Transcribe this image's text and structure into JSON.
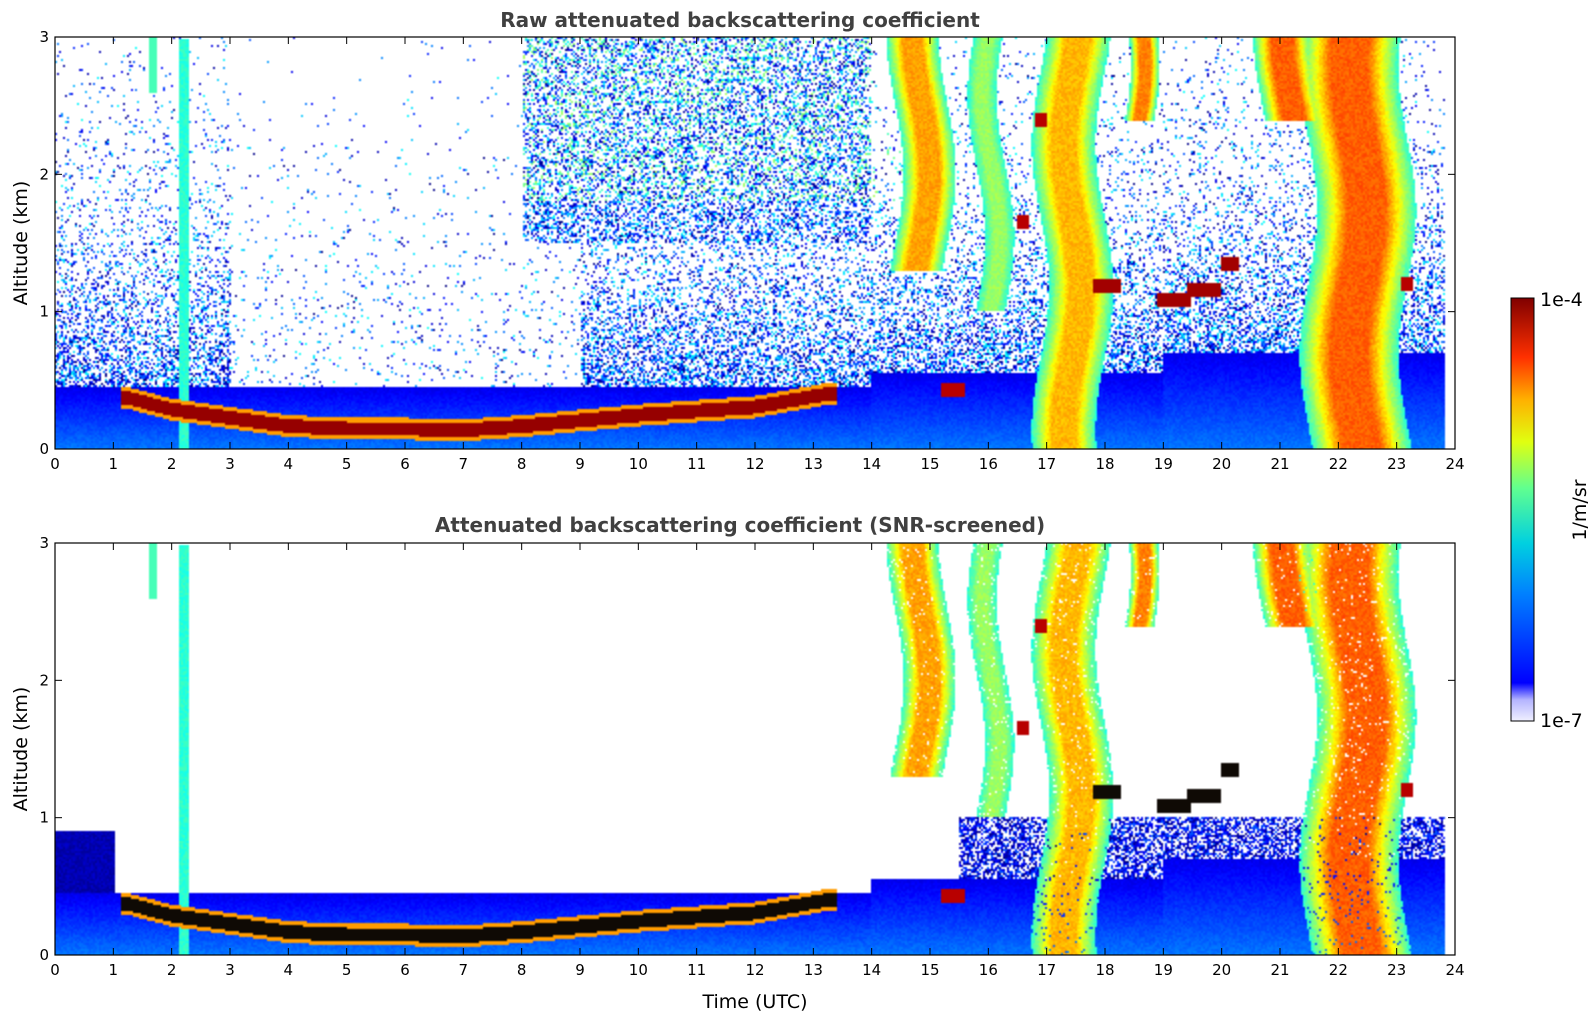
{
  "chart_data": [
    {
      "type": "heatmap",
      "title": "Raw attenuated backscattering coefficient",
      "xlabel": "",
      "ylabel": "Altitude (km)",
      "xlim": [
        0,
        24
      ],
      "ylim": [
        0,
        3
      ],
      "xticks": [
        "0",
        "1",
        "2",
        "3",
        "4",
        "5",
        "6",
        "7",
        "8",
        "9",
        "10",
        "11",
        "12",
        "13",
        "14",
        "15",
        "16",
        "17",
        "18",
        "19",
        "20",
        "21",
        "22",
        "23",
        "24"
      ],
      "yticks": [
        "0",
        "1",
        "2",
        "3"
      ],
      "screened": false,
      "features": {
        "boundary_layer_top_km": [
          [
            1.2,
            0.37
          ],
          [
            2,
            0.28
          ],
          [
            3,
            0.22
          ],
          [
            4,
            0.16
          ],
          [
            5,
            0.14
          ],
          [
            6,
            0.14
          ],
          [
            7,
            0.13
          ],
          [
            8,
            0.16
          ],
          [
            9,
            0.2
          ],
          [
            10,
            0.24
          ],
          [
            11,
            0.27
          ],
          [
            12,
            0.3
          ],
          [
            13.3,
            0.4
          ]
        ],
        "cloud_columns": [
          {
            "x0": 14.4,
            "x1": 15.3,
            "ytop": 3.0,
            "ybot": 1.3,
            "level": 0.72
          },
          {
            "x0": 15.8,
            "x1": 16.3,
            "ytop": 3.0,
            "ybot": 1.0,
            "level": 0.55
          },
          {
            "x0": 16.9,
            "x1": 18.0,
            "ytop": 3.0,
            "ybot": 0.0,
            "level": 0.7
          },
          {
            "x0": 18.3,
            "x1": 18.8,
            "ytop": 3.0,
            "ybot": 2.4,
            "level": 0.75
          },
          {
            "x0": 20.7,
            "x1": 21.7,
            "ytop": 3.0,
            "ybot": 2.4,
            "level": 0.78
          },
          {
            "x0": 21.5,
            "x1": 23.2,
            "ytop": 3.0,
            "ybot": 0.0,
            "level": 0.78
          }
        ],
        "thin_layers": [
          {
            "x0": 18.9,
            "x1": 19.5,
            "y": 1.08,
            "level": 0.97
          },
          {
            "x0": 19.4,
            "x1": 20.0,
            "y": 1.16,
            "level": 0.97
          },
          {
            "x0": 20.0,
            "x1": 20.3,
            "y": 1.35,
            "level": 0.97
          },
          {
            "x0": 17.8,
            "x1": 18.3,
            "y": 1.18,
            "level": 0.97
          },
          {
            "x0": 15.2,
            "x1": 15.6,
            "y": 0.42,
            "level": 0.95
          },
          {
            "x0": 16.5,
            "x1": 16.7,
            "y": 1.65,
            "level": 0.95
          },
          {
            "x0": 16.8,
            "x1": 17.0,
            "y": 2.4,
            "level": 0.95
          },
          {
            "x0": 23.1,
            "x1": 23.3,
            "y": 1.2,
            "level": 0.95
          }
        ]
      }
    },
    {
      "type": "heatmap",
      "title": "Attenuated backscattering coefficient (SNR-screened)",
      "xlabel": "Time (UTC)",
      "ylabel": "Altitude (km)",
      "xlim": [
        0,
        24
      ],
      "ylim": [
        0,
        3
      ],
      "xticks": [
        "0",
        "1",
        "2",
        "3",
        "4",
        "5",
        "6",
        "7",
        "8",
        "9",
        "10",
        "11",
        "12",
        "13",
        "14",
        "15",
        "16",
        "17",
        "18",
        "19",
        "20",
        "21",
        "22",
        "23",
        "24"
      ],
      "yticks": [
        "0",
        "1",
        "2",
        "3"
      ],
      "screened": true
    }
  ],
  "colorbar": {
    "min_label": "1e-7",
    "max_label": "1e-4",
    "label": "1/m/sr",
    "scale": "log",
    "colormap": "jet"
  }
}
